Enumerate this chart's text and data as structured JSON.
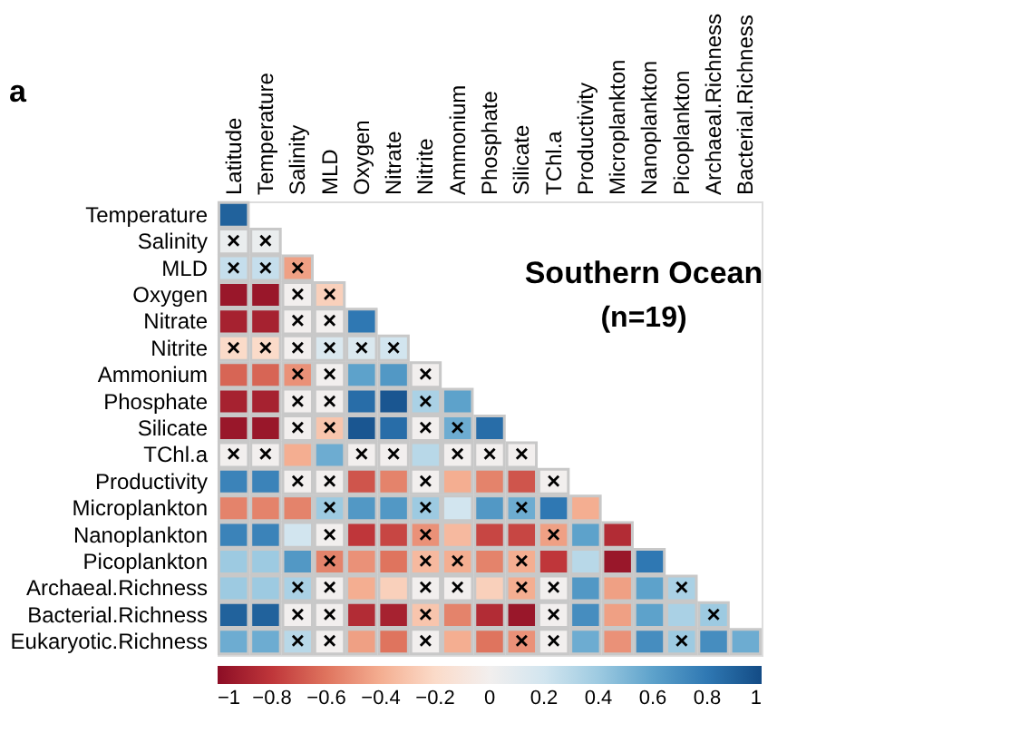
{
  "chart_data": {
    "type": "heatmap",
    "title": "Southern Ocean",
    "subtitle": "(n=19)",
    "annotations": [
      "a"
    ],
    "categories": [
      "Latitude",
      "Temperature",
      "Salinity",
      "MLD",
      "Oxygen",
      "Nitrate",
      "Nitrite",
      "Ammonium",
      "Phosphate",
      "Silicate",
      "TChl.a",
      "Productivity",
      "Microplankton",
      "Nanoplankton",
      "Picoplankton",
      "Archaeal.Richness",
      "Bacterial.Richness"
    ],
    "y_categories": [
      "Temperature",
      "Salinity",
      "MLD",
      "Oxygen",
      "Nitrate",
      "Nitrite",
      "Ammonium",
      "Phosphate",
      "Silicate",
      "TChl.a",
      "Productivity",
      "Microplankton",
      "Nanoplankton",
      "Picoplankton",
      "Archaeal.Richness",
      "Bacterial.Richness",
      "Eukaryotic.Richness"
    ],
    "cells": [
      [
        0.9,
        null,
        null,
        null,
        null,
        null,
        null,
        null,
        null,
        null,
        null,
        null,
        null,
        null,
        null,
        null,
        null
      ],
      [
        0.05,
        0.05,
        null,
        null,
        null,
        null,
        null,
        null,
        null,
        null,
        null,
        null,
        null,
        null,
        null,
        null,
        null
      ],
      [
        0.25,
        0.25,
        -0.45,
        null,
        null,
        null,
        null,
        null,
        null,
        null,
        null,
        null,
        null,
        null,
        null,
        null,
        null
      ],
      [
        -0.95,
        -0.95,
        0.0,
        -0.25,
        null,
        null,
        null,
        null,
        null,
        null,
        null,
        null,
        null,
        null,
        null,
        null,
        null
      ],
      [
        -0.9,
        -0.9,
        0.0,
        0.0,
        0.8,
        null,
        null,
        null,
        null,
        null,
        null,
        null,
        null,
        null,
        null,
        null,
        null
      ],
      [
        -0.2,
        -0.2,
        0.0,
        0.15,
        0.15,
        0.2,
        null,
        null,
        null,
        null,
        null,
        null,
        null,
        null,
        null,
        null,
        null
      ],
      [
        -0.65,
        -0.65,
        -0.5,
        0.0,
        0.6,
        0.65,
        0.0,
        null,
        null,
        null,
        null,
        null,
        null,
        null,
        null,
        null,
        null
      ],
      [
        -0.9,
        -0.9,
        0.0,
        0.0,
        0.85,
        0.95,
        0.35,
        0.6,
        null,
        null,
        null,
        null,
        null,
        null,
        null,
        null,
        null
      ],
      [
        -0.95,
        -0.95,
        0.0,
        -0.3,
        0.95,
        0.85,
        0.0,
        0.55,
        0.85,
        null,
        null,
        null,
        null,
        null,
        null,
        null,
        null
      ],
      [
        0.0,
        0.0,
        -0.4,
        0.55,
        0.0,
        0.0,
        0.3,
        0.0,
        0.0,
        0.0,
        null,
        null,
        null,
        null,
        null,
        null,
        null
      ],
      [
        0.75,
        0.75,
        0.0,
        0.0,
        -0.7,
        -0.55,
        0.0,
        -0.4,
        -0.55,
        -0.7,
        0.0,
        null,
        null,
        null,
        null,
        null,
        null
      ],
      [
        -0.55,
        -0.55,
        -0.55,
        0.4,
        0.65,
        0.65,
        0.4,
        0.2,
        0.65,
        0.55,
        0.8,
        -0.4,
        null,
        null,
        null,
        null,
        null
      ],
      [
        0.75,
        0.75,
        0.2,
        0.0,
        -0.8,
        -0.75,
        -0.5,
        -0.35,
        -0.75,
        -0.75,
        -0.45,
        0.6,
        -0.85,
        null,
        null,
        null,
        null
      ],
      [
        0.4,
        0.4,
        0.65,
        -0.55,
        -0.5,
        -0.6,
        -0.35,
        -0.4,
        -0.55,
        -0.4,
        -0.8,
        0.3,
        -0.95,
        0.8,
        null,
        null,
        null
      ],
      [
        0.4,
        0.4,
        0.35,
        0.0,
        -0.4,
        -0.25,
        0.0,
        0.0,
        -0.25,
        -0.4,
        0.0,
        0.65,
        -0.45,
        0.6,
        0.35,
        null,
        null
      ],
      [
        0.9,
        0.9,
        0.0,
        0.0,
        -0.85,
        -0.9,
        -0.3,
        -0.55,
        -0.85,
        -0.95,
        0.0,
        0.7,
        -0.45,
        0.6,
        0.35,
        0.4,
        null
      ],
      [
        0.55,
        0.55,
        0.3,
        0.0,
        -0.45,
        -0.6,
        0.0,
        -0.4,
        -0.6,
        -0.5,
        0.0,
        0.55,
        -0.5,
        0.7,
        0.4,
        0.7,
        0.55
      ]
    ],
    "cell_labels": [
      [
        null,
        null,
        null,
        null,
        null,
        null,
        null,
        null,
        null,
        null,
        null,
        null,
        null,
        null,
        null,
        null,
        null
      ],
      [
        "×",
        "×",
        null,
        null,
        null,
        null,
        null,
        null,
        null,
        null,
        null,
        null,
        null,
        null,
        null,
        null,
        null
      ],
      [
        "×",
        "×",
        "×",
        null,
        null,
        null,
        null,
        null,
        null,
        null,
        null,
        null,
        null,
        null,
        null,
        null,
        null
      ],
      [
        null,
        null,
        "×",
        "×",
        null,
        null,
        null,
        null,
        null,
        null,
        null,
        null,
        null,
        null,
        null,
        null,
        null
      ],
      [
        null,
        null,
        "×",
        "×",
        null,
        null,
        null,
        null,
        null,
        null,
        null,
        null,
        null,
        null,
        null,
        null,
        null
      ],
      [
        "×",
        "×",
        "×",
        "×",
        "×",
        "×",
        null,
        null,
        null,
        null,
        null,
        null,
        null,
        null,
        null,
        null,
        null
      ],
      [
        null,
        null,
        "×",
        "×",
        null,
        null,
        "×",
        null,
        null,
        null,
        null,
        null,
        null,
        null,
        null,
        null,
        null
      ],
      [
        null,
        null,
        "×",
        "×",
        null,
        null,
        "×",
        null,
        null,
        null,
        null,
        null,
        null,
        null,
        null,
        null,
        null
      ],
      [
        null,
        null,
        "×",
        "×",
        null,
        null,
        "×",
        "×",
        null,
        null,
        null,
        null,
        null,
        null,
        null,
        null,
        null
      ],
      [
        "×",
        "×",
        null,
        null,
        "×",
        "×",
        null,
        "×",
        "×",
        "×",
        null,
        null,
        null,
        null,
        null,
        null,
        null
      ],
      [
        null,
        null,
        "×",
        "×",
        null,
        null,
        "×",
        null,
        null,
        null,
        "×",
        null,
        null,
        null,
        null,
        null,
        null
      ],
      [
        null,
        null,
        null,
        "×",
        null,
        null,
        "×",
        null,
        null,
        "×",
        null,
        null,
        null,
        null,
        null,
        null,
        null
      ],
      [
        null,
        null,
        null,
        "×",
        null,
        null,
        "×",
        null,
        null,
        null,
        "×",
        null,
        null,
        null,
        null,
        null,
        null
      ],
      [
        null,
        null,
        null,
        "×",
        null,
        null,
        "×",
        "×",
        null,
        "×",
        null,
        null,
        null,
        null,
        null,
        null,
        null
      ],
      [
        null,
        null,
        "×",
        "×",
        null,
        null,
        "×",
        "×",
        null,
        "×",
        "×",
        null,
        null,
        null,
        "×",
        null,
        null
      ],
      [
        null,
        null,
        "×",
        "×",
        null,
        null,
        "×",
        null,
        null,
        null,
        "×",
        null,
        null,
        null,
        null,
        "×",
        null
      ],
      [
        null,
        null,
        "×",
        "×",
        null,
        null,
        "×",
        null,
        null,
        "×",
        "×",
        null,
        null,
        null,
        "×",
        null,
        null
      ]
    ],
    "clim": [
      -1,
      1
    ],
    "cticks": [
      -1,
      -0.8,
      -0.6,
      -0.4,
      -0.2,
      0,
      0.2,
      0.4,
      0.6,
      0.8,
      1
    ]
  }
}
